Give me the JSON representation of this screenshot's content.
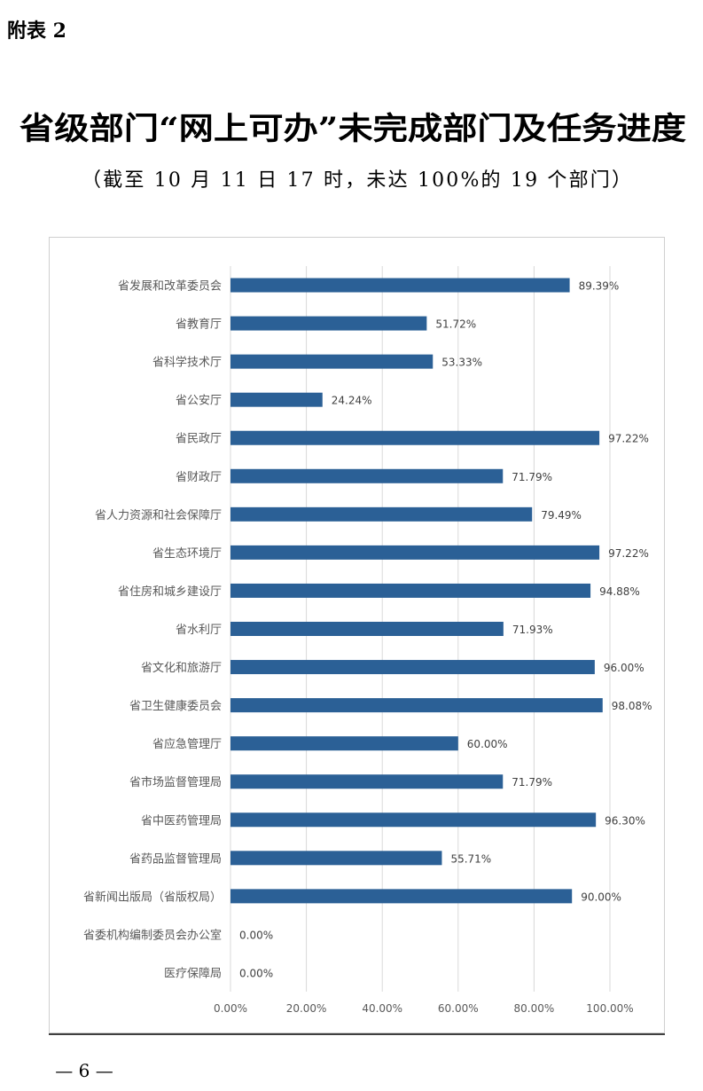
{
  "header": "附表 2",
  "page_number": "— 6 —",
  "chart_data": {
    "type": "bar",
    "orientation": "horizontal",
    "title": "省级部门“网上可办”未完成部门及任务进度",
    "subtitle": "（截至 10 月 11 日 17 时，未达 100%的 19 个部门）",
    "categories": [
      "省发展和改革委员会",
      "省教育厅",
      "省科学技术厅",
      "省公安厅",
      "省民政厅",
      "省财政厅",
      "省人力资源和社会保障厅",
      "省生态环境厅",
      "省住房和城乡建设厅",
      "省水利厅",
      "省文化和旅游厅",
      "省卫生健康委员会",
      "省应急管理厅",
      "省市场监督管理局",
      "省中医药管理局",
      "省药品监督管理局",
      "省新闻出版局（省版权局）",
      "省委机构编制委员会办公室",
      "医疗保障局"
    ],
    "values": [
      89.39,
      51.72,
      53.33,
      24.24,
      97.22,
      71.79,
      79.49,
      97.22,
      94.88,
      71.93,
      96.0,
      98.08,
      60.0,
      71.79,
      96.3,
      55.71,
      90.0,
      0,
      0
    ],
    "value_labels": [
      "89.39%",
      "51.72%",
      "53.33%",
      "24.24%",
      "97.22%",
      "71.79%",
      "79.49%",
      "97.22%",
      "94.88%",
      "71.93%",
      "96.00%",
      "98.08%",
      "60.00%",
      "71.79%",
      "96.30%",
      "55.71%",
      "90.00%",
      "0.00%",
      "0.00%"
    ],
    "color": "#2b6096",
    "xlim": [
      0,
      100
    ],
    "xticks": [
      {
        "value": 0,
        "label": "0.00%"
      },
      {
        "value": 20,
        "label": "20.00%"
      },
      {
        "value": 40,
        "label": "40.00%"
      },
      {
        "value": 60,
        "label": "60.00%"
      },
      {
        "value": 80,
        "label": "80.00%"
      },
      {
        "value": 100,
        "label": "100.00%"
      }
    ],
    "grid": true
  }
}
